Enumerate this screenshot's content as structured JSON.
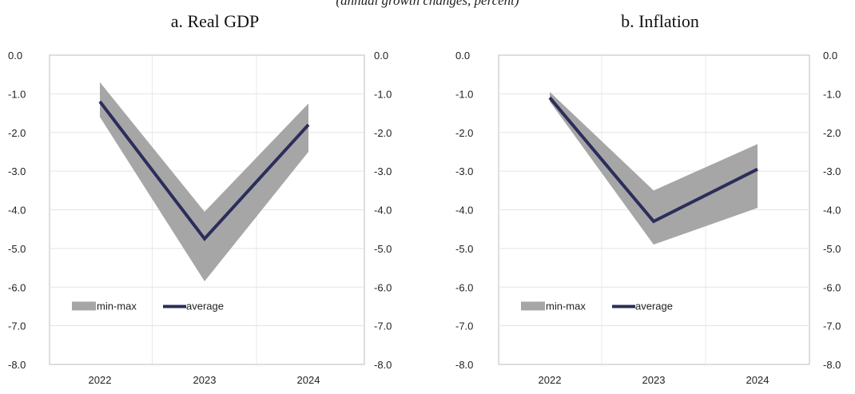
{
  "caption": "(annual growth changes, percent)",
  "chart_data": [
    {
      "type": "area",
      "title": "a.  Real GDP",
      "categories": [
        "2022",
        "2023",
        "2024"
      ],
      "ylim": [
        -8.0,
        0.0
      ],
      "yticks": [
        "0.0",
        "-1.0",
        "-2.0",
        "-3.0",
        "-4.0",
        "-5.0",
        "-6.0",
        "-7.0",
        "-8.0"
      ],
      "grid": true,
      "legend_position": "bottom-left",
      "colors": {
        "band": "#a6a6a6",
        "line": "#2b2d5b"
      },
      "series": [
        {
          "name": "min-max",
          "min": [
            -1.6,
            -5.85,
            -2.5
          ],
          "max": [
            -0.7,
            -4.05,
            -1.25
          ]
        },
        {
          "name": "average",
          "values": [
            -1.2,
            -4.75,
            -1.8
          ]
        }
      ]
    },
    {
      "type": "area",
      "title": "b.   Inflation",
      "categories": [
        "2022",
        "2023",
        "2024"
      ],
      "ylim": [
        -8.0,
        0.0
      ],
      "yticks": [
        "0.0",
        "-1.0",
        "-2.0",
        "-3.0",
        "-4.0",
        "-5.0",
        "-6.0",
        "-7.0",
        "-8.0"
      ],
      "grid": true,
      "legend_position": "bottom-left",
      "colors": {
        "band": "#a6a6a6",
        "line": "#2b2d5b"
      },
      "series": [
        {
          "name": "min-max",
          "min": [
            -1.2,
            -4.9,
            -3.95
          ],
          "max": [
            -0.95,
            -3.5,
            -2.3
          ]
        },
        {
          "name": "average",
          "values": [
            -1.1,
            -4.3,
            -2.95
          ]
        }
      ]
    }
  ]
}
